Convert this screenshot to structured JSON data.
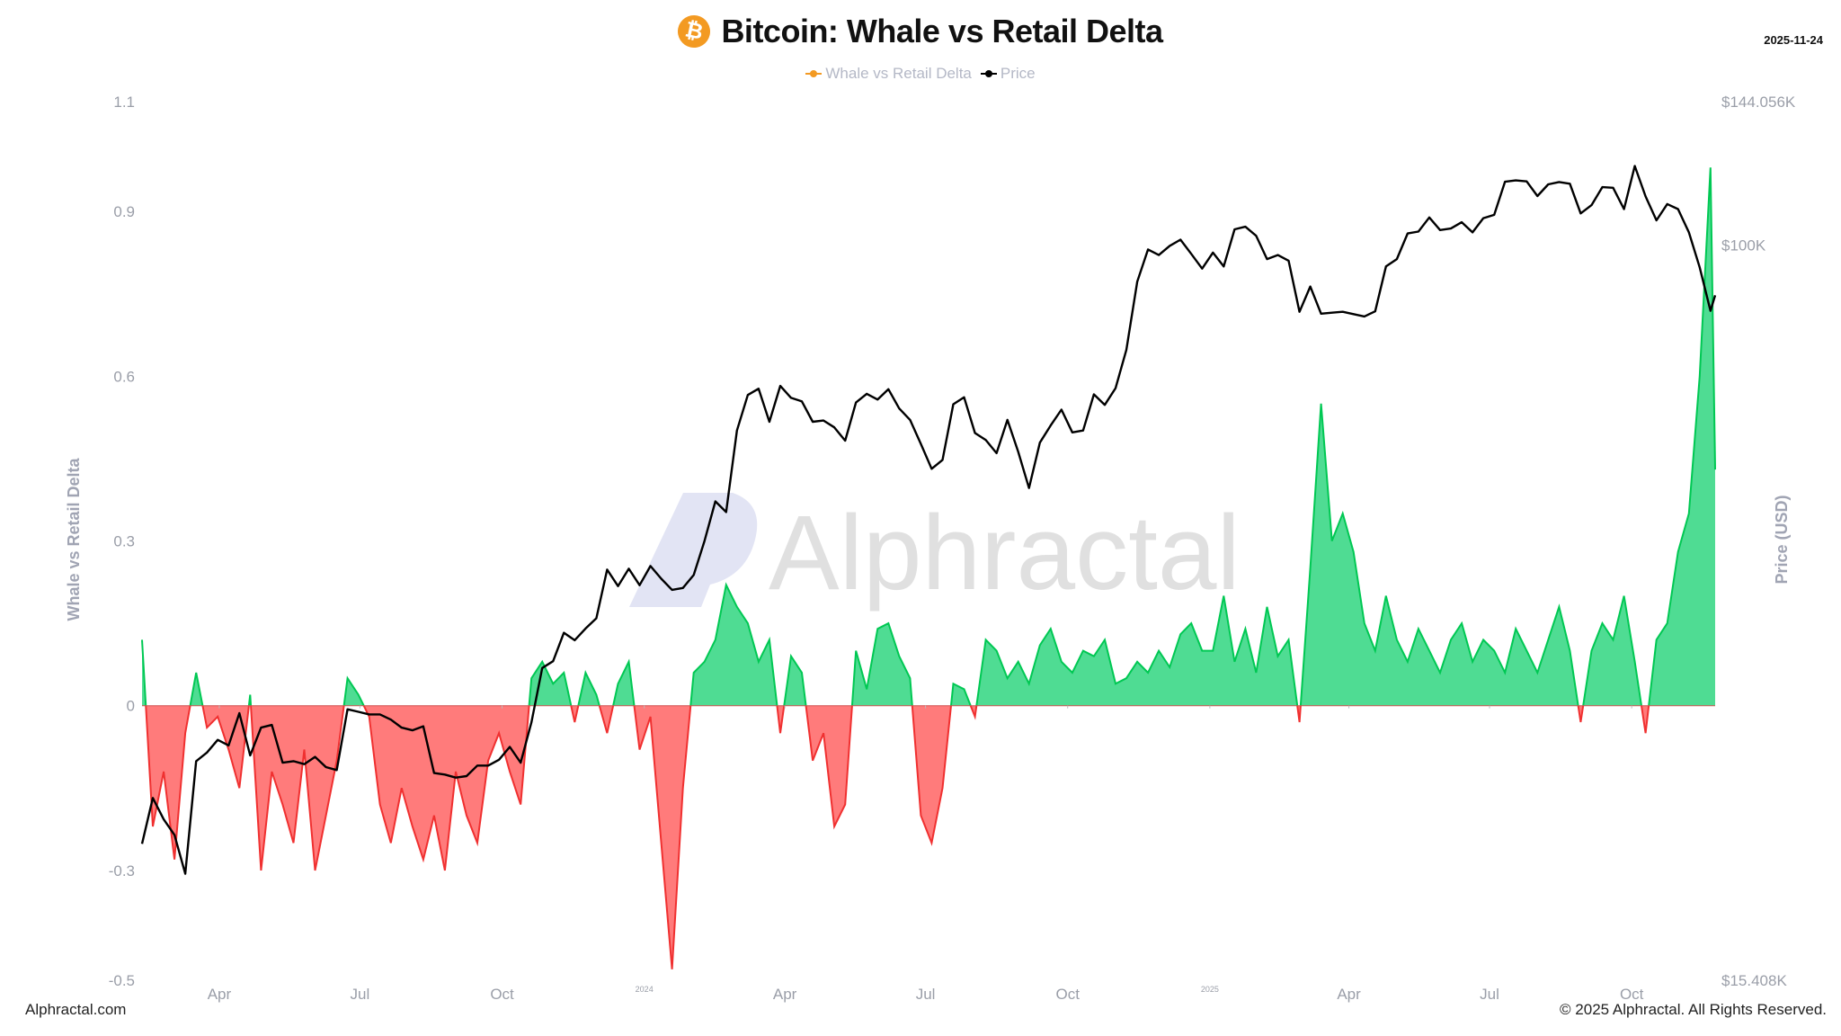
{
  "header": {
    "title": "Bitcoin: Whale vs Retail Delta",
    "date": "2025-11-24",
    "icon": "bitcoin-icon",
    "icon_color": "#f39a22"
  },
  "legend": [
    {
      "label": "Whale vs Retail Delta",
      "color": "#f39a22"
    },
    {
      "label": "Price",
      "color": "#000000"
    }
  ],
  "watermark": "Alphractal",
  "footer": {
    "left": "Alphractal.com",
    "right": "© 2025 Alphractal. All Rights Reserved."
  },
  "chart_data": {
    "type": "area",
    "title": "Bitcoin: Whale vs Retail Delta",
    "ylabel": "Whale vs Retail Delta",
    "y2label": "Price (USD)",
    "ylim": [
      -0.5,
      1.1
    ],
    "y_ticks": [
      {
        "value": 1.1,
        "label": "1.1"
      },
      {
        "value": 0.9,
        "label": "0.9"
      },
      {
        "value": 0.6,
        "label": "0.6"
      },
      {
        "value": 0.3,
        "label": "0.3"
      },
      {
        "value": 0,
        "label": "0"
      },
      {
        "value": -0.3,
        "label": "-0.3"
      },
      {
        "value": -0.5,
        "label": "-0.5"
      }
    ],
    "y2_scale": "log",
    "y2lim": [
      15408,
      144056
    ],
    "y2_ticks": [
      {
        "value": 144056,
        "label": "$144.056K"
      },
      {
        "value": 100000,
        "label": "$100K"
      },
      {
        "value": 15408,
        "label": "$15.408K"
      }
    ],
    "x_ticks": [
      {
        "date": "2023-04-01",
        "label": "Apr",
        "kind": "month"
      },
      {
        "date": "2023-07-01",
        "label": "Jul",
        "kind": "month"
      },
      {
        "date": "2023-10-01",
        "label": "Oct",
        "kind": "month"
      },
      {
        "date": "2024-01-01",
        "label": "2024",
        "kind": "year"
      },
      {
        "date": "2024-04-01",
        "label": "Apr",
        "kind": "month"
      },
      {
        "date": "2024-07-01",
        "label": "Jul",
        "kind": "month"
      },
      {
        "date": "2024-10-01",
        "label": "Oct",
        "kind": "month"
      },
      {
        "date": "2025-01-01",
        "label": "2025",
        "kind": "year"
      },
      {
        "date": "2025-04-01",
        "label": "Apr",
        "kind": "month"
      },
      {
        "date": "2025-07-01",
        "label": "Jul",
        "kind": "month"
      },
      {
        "date": "2025-10-01",
        "label": "Oct",
        "kind": "month"
      }
    ],
    "grid": false,
    "legend_position": "top",
    "colors": {
      "positive": "#00c853",
      "positive_fill": "#4fdc93",
      "negative": "#f03030",
      "negative_fill": "#ff7b7b",
      "price": "#000000"
    },
    "x": [
      "2023-02-10",
      "2023-02-17",
      "2023-02-24",
      "2023-03-03",
      "2023-03-10",
      "2023-03-17",
      "2023-03-24",
      "2023-03-31",
      "2023-04-07",
      "2023-04-14",
      "2023-04-21",
      "2023-04-28",
      "2023-05-05",
      "2023-05-12",
      "2023-05-19",
      "2023-05-26",
      "2023-06-02",
      "2023-06-09",
      "2023-06-16",
      "2023-06-23",
      "2023-06-30",
      "2023-07-07",
      "2023-07-14",
      "2023-07-21",
      "2023-07-28",
      "2023-08-04",
      "2023-08-11",
      "2023-08-18",
      "2023-08-25",
      "2023-09-01",
      "2023-09-08",
      "2023-09-15",
      "2023-09-22",
      "2023-09-29",
      "2023-10-06",
      "2023-10-13",
      "2023-10-20",
      "2023-10-27",
      "2023-11-03",
      "2023-11-10",
      "2023-11-17",
      "2023-11-24",
      "2023-12-01",
      "2023-12-08",
      "2023-12-15",
      "2023-12-22",
      "2023-12-29",
      "2024-01-05",
      "2024-01-12",
      "2024-01-19",
      "2024-01-26",
      "2024-02-02",
      "2024-02-09",
      "2024-02-16",
      "2024-02-23",
      "2024-03-01",
      "2024-03-08",
      "2024-03-15",
      "2024-03-22",
      "2024-03-29",
      "2024-04-05",
      "2024-04-12",
      "2024-04-19",
      "2024-04-26",
      "2024-05-03",
      "2024-05-10",
      "2024-05-17",
      "2024-05-24",
      "2024-05-31",
      "2024-06-07",
      "2024-06-14",
      "2024-06-21",
      "2024-06-28",
      "2024-07-05",
      "2024-07-12",
      "2024-07-19",
      "2024-07-26",
      "2024-08-02",
      "2024-08-09",
      "2024-08-16",
      "2024-08-23",
      "2024-08-30",
      "2024-09-06",
      "2024-09-13",
      "2024-09-20",
      "2024-09-27",
      "2024-10-04",
      "2024-10-11",
      "2024-10-18",
      "2024-10-25",
      "2024-11-01",
      "2024-11-08",
      "2024-11-15",
      "2024-11-22",
      "2024-11-29",
      "2024-12-06",
      "2024-12-13",
      "2024-12-20",
      "2024-12-27",
      "2025-01-03",
      "2025-01-10",
      "2025-01-17",
      "2025-01-24",
      "2025-01-31",
      "2025-02-07",
      "2025-02-14",
      "2025-02-21",
      "2025-02-28",
      "2025-03-07",
      "2025-03-14",
      "2025-03-21",
      "2025-03-28",
      "2025-04-04",
      "2025-04-11",
      "2025-04-18",
      "2025-04-25",
      "2025-05-02",
      "2025-05-09",
      "2025-05-16",
      "2025-05-23",
      "2025-05-30",
      "2025-06-06",
      "2025-06-13",
      "2025-06-20",
      "2025-06-27",
      "2025-07-04",
      "2025-07-11",
      "2025-07-18",
      "2025-07-25",
      "2025-08-01",
      "2025-08-08",
      "2025-08-15",
      "2025-08-22",
      "2025-08-29",
      "2025-09-05",
      "2025-09-12",
      "2025-09-19",
      "2025-09-26",
      "2025-10-03",
      "2025-10-10",
      "2025-10-17",
      "2025-10-24",
      "2025-10-31",
      "2025-11-07",
      "2025-11-14",
      "2025-11-21",
      "2025-11-24"
    ],
    "series": [
      {
        "name": "Whale vs Retail Delta",
        "axis": "left",
        "values": [
          0.12,
          -0.22,
          -0.12,
          -0.28,
          -0.05,
          0.06,
          -0.04,
          -0.02,
          -0.08,
          -0.15,
          0.02,
          -0.3,
          -0.12,
          -0.18,
          -0.25,
          -0.08,
          -0.3,
          -0.2,
          -0.1,
          0.05,
          0.02,
          -0.02,
          -0.18,
          -0.25,
          -0.15,
          -0.22,
          -0.28,
          -0.2,
          -0.3,
          -0.12,
          -0.2,
          -0.25,
          -0.1,
          -0.05,
          -0.12,
          -0.18,
          0.05,
          0.08,
          0.04,
          0.06,
          -0.03,
          0.06,
          0.02,
          -0.05,
          0.04,
          0.08,
          -0.08,
          -0.02,
          -0.25,
          -0.48,
          -0.15,
          0.06,
          0.08,
          0.12,
          0.22,
          0.18,
          0.15,
          0.08,
          0.12,
          -0.05,
          0.09,
          0.06,
          -0.1,
          -0.05,
          -0.22,
          -0.18,
          0.1,
          0.03,
          0.14,
          0.15,
          0.09,
          0.05,
          -0.2,
          -0.25,
          -0.15,
          0.04,
          0.03,
          -0.02,
          0.12,
          0.1,
          0.05,
          0.08,
          0.04,
          0.11,
          0.14,
          0.08,
          0.06,
          0.1,
          0.09,
          0.12,
          0.04,
          0.05,
          0.08,
          0.06,
          0.1,
          0.07,
          0.13,
          0.15,
          0.1,
          0.1,
          0.2,
          0.08,
          0.14,
          0.06,
          0.18,
          0.09,
          0.12,
          -0.03,
          0.25,
          0.55,
          0.3,
          0.35,
          0.28,
          0.15,
          0.1,
          0.2,
          0.12,
          0.08,
          0.14,
          0.1,
          0.06,
          0.12,
          0.15,
          0.08,
          0.12,
          0.1,
          0.06,
          0.14,
          0.1,
          0.06,
          0.12,
          0.18,
          0.1,
          -0.03,
          0.1,
          0.15,
          0.12,
          0.2,
          0.08,
          -0.05,
          0.12,
          0.15,
          0.28,
          0.35,
          0.6,
          0.98,
          0.43
        ]
      },
      {
        "name": "Price",
        "axis": "right",
        "values": [
          21800,
          24500,
          23200,
          22300,
          20200,
          26900,
          27500,
          28400,
          28000,
          30400,
          27300,
          29300,
          29500,
          26800,
          26900,
          26700,
          27200,
          26500,
          26300,
          30700,
          30500,
          30300,
          30300,
          29900,
          29300,
          29100,
          29400,
          26100,
          26000,
          25800,
          25900,
          26600,
          26600,
          27000,
          27900,
          26800,
          29700,
          34100,
          34700,
          37300,
          36600,
          37700,
          38700,
          43800,
          42000,
          43900,
          42100,
          44200,
          42800,
          41600,
          41800,
          43200,
          47100,
          52100,
          50700,
          62400,
          68300,
          69400,
          63800,
          69900,
          67800,
          67200,
          63800,
          64000,
          62900,
          60800,
          67000,
          68500,
          67500,
          69300,
          66000,
          64100,
          60300,
          56600,
          57900,
          66700,
          67900,
          62000,
          60900,
          58900,
          64100,
          59100,
          53900,
          60500,
          63200,
          65800,
          62100,
          62400,
          68400,
          66600,
          69500,
          76600,
          91100,
          98900,
          97500,
          99800,
          101400,
          97800,
          94200,
          98100,
          94700,
          104100,
          104800,
          102400,
          96500,
          97500,
          96100,
          84400,
          90000,
          84000,
          84200,
          84400,
          83900,
          83400,
          84500,
          94700,
          96500,
          103000,
          103500,
          107300,
          103900,
          104300,
          106000,
          103300,
          107100,
          108000,
          117500,
          117900,
          117600,
          113300,
          116700,
          117400,
          116900,
          108400,
          110700,
          115900,
          115700,
          109600,
          122300,
          113200,
          106500,
          111000,
          109600,
          103300,
          94500,
          84600,
          88000
        ]
      }
    ]
  }
}
